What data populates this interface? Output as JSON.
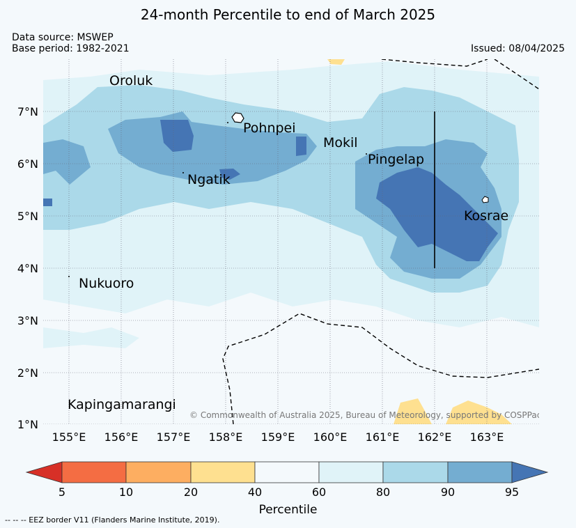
{
  "title": "24-month Percentile to end of March 2025",
  "data_source": "Data source: MSWEP",
  "base_period": "Base period: 1982-2021",
  "issued": "Issued: 08/04/2025",
  "x_ticks": [
    "155°E",
    "156°E",
    "157°E",
    "158°E",
    "159°E",
    "160°E",
    "161°E",
    "162°E",
    "163°E"
  ],
  "y_ticks": [
    "7°N",
    "6°N",
    "5°N",
    "4°N",
    "3°N",
    "2°N",
    "1°N"
  ],
  "places": [
    "Oroluk",
    "Pohnpei",
    "Mokil",
    "Pingelap",
    "Ngatik",
    "Kosrae",
    "Nukuoro",
    "Kapingamarangi"
  ],
  "credit": "© Commonwealth of Australia 2025, Bureau of Meteorology, supported by COSPPac",
  "colorbar": {
    "title": "Percentile",
    "ticks": [
      "5",
      "10",
      "20",
      "40",
      "60",
      "80",
      "90",
      "95"
    ],
    "colors": {
      "below5": "#d73027",
      "5-10": "#f46d43",
      "10-20": "#fdae61",
      "20-40": "#fee090",
      "40-60": "#f4f9fc",
      "60-80": "#e0f3f8",
      "80-90": "#abd9e9",
      "90-95": "#74add1",
      "above95": "#4575b4"
    }
  },
  "footnote": "-- -- -- EEZ border V11 (Flanders Marine Institute, 2019)."
}
